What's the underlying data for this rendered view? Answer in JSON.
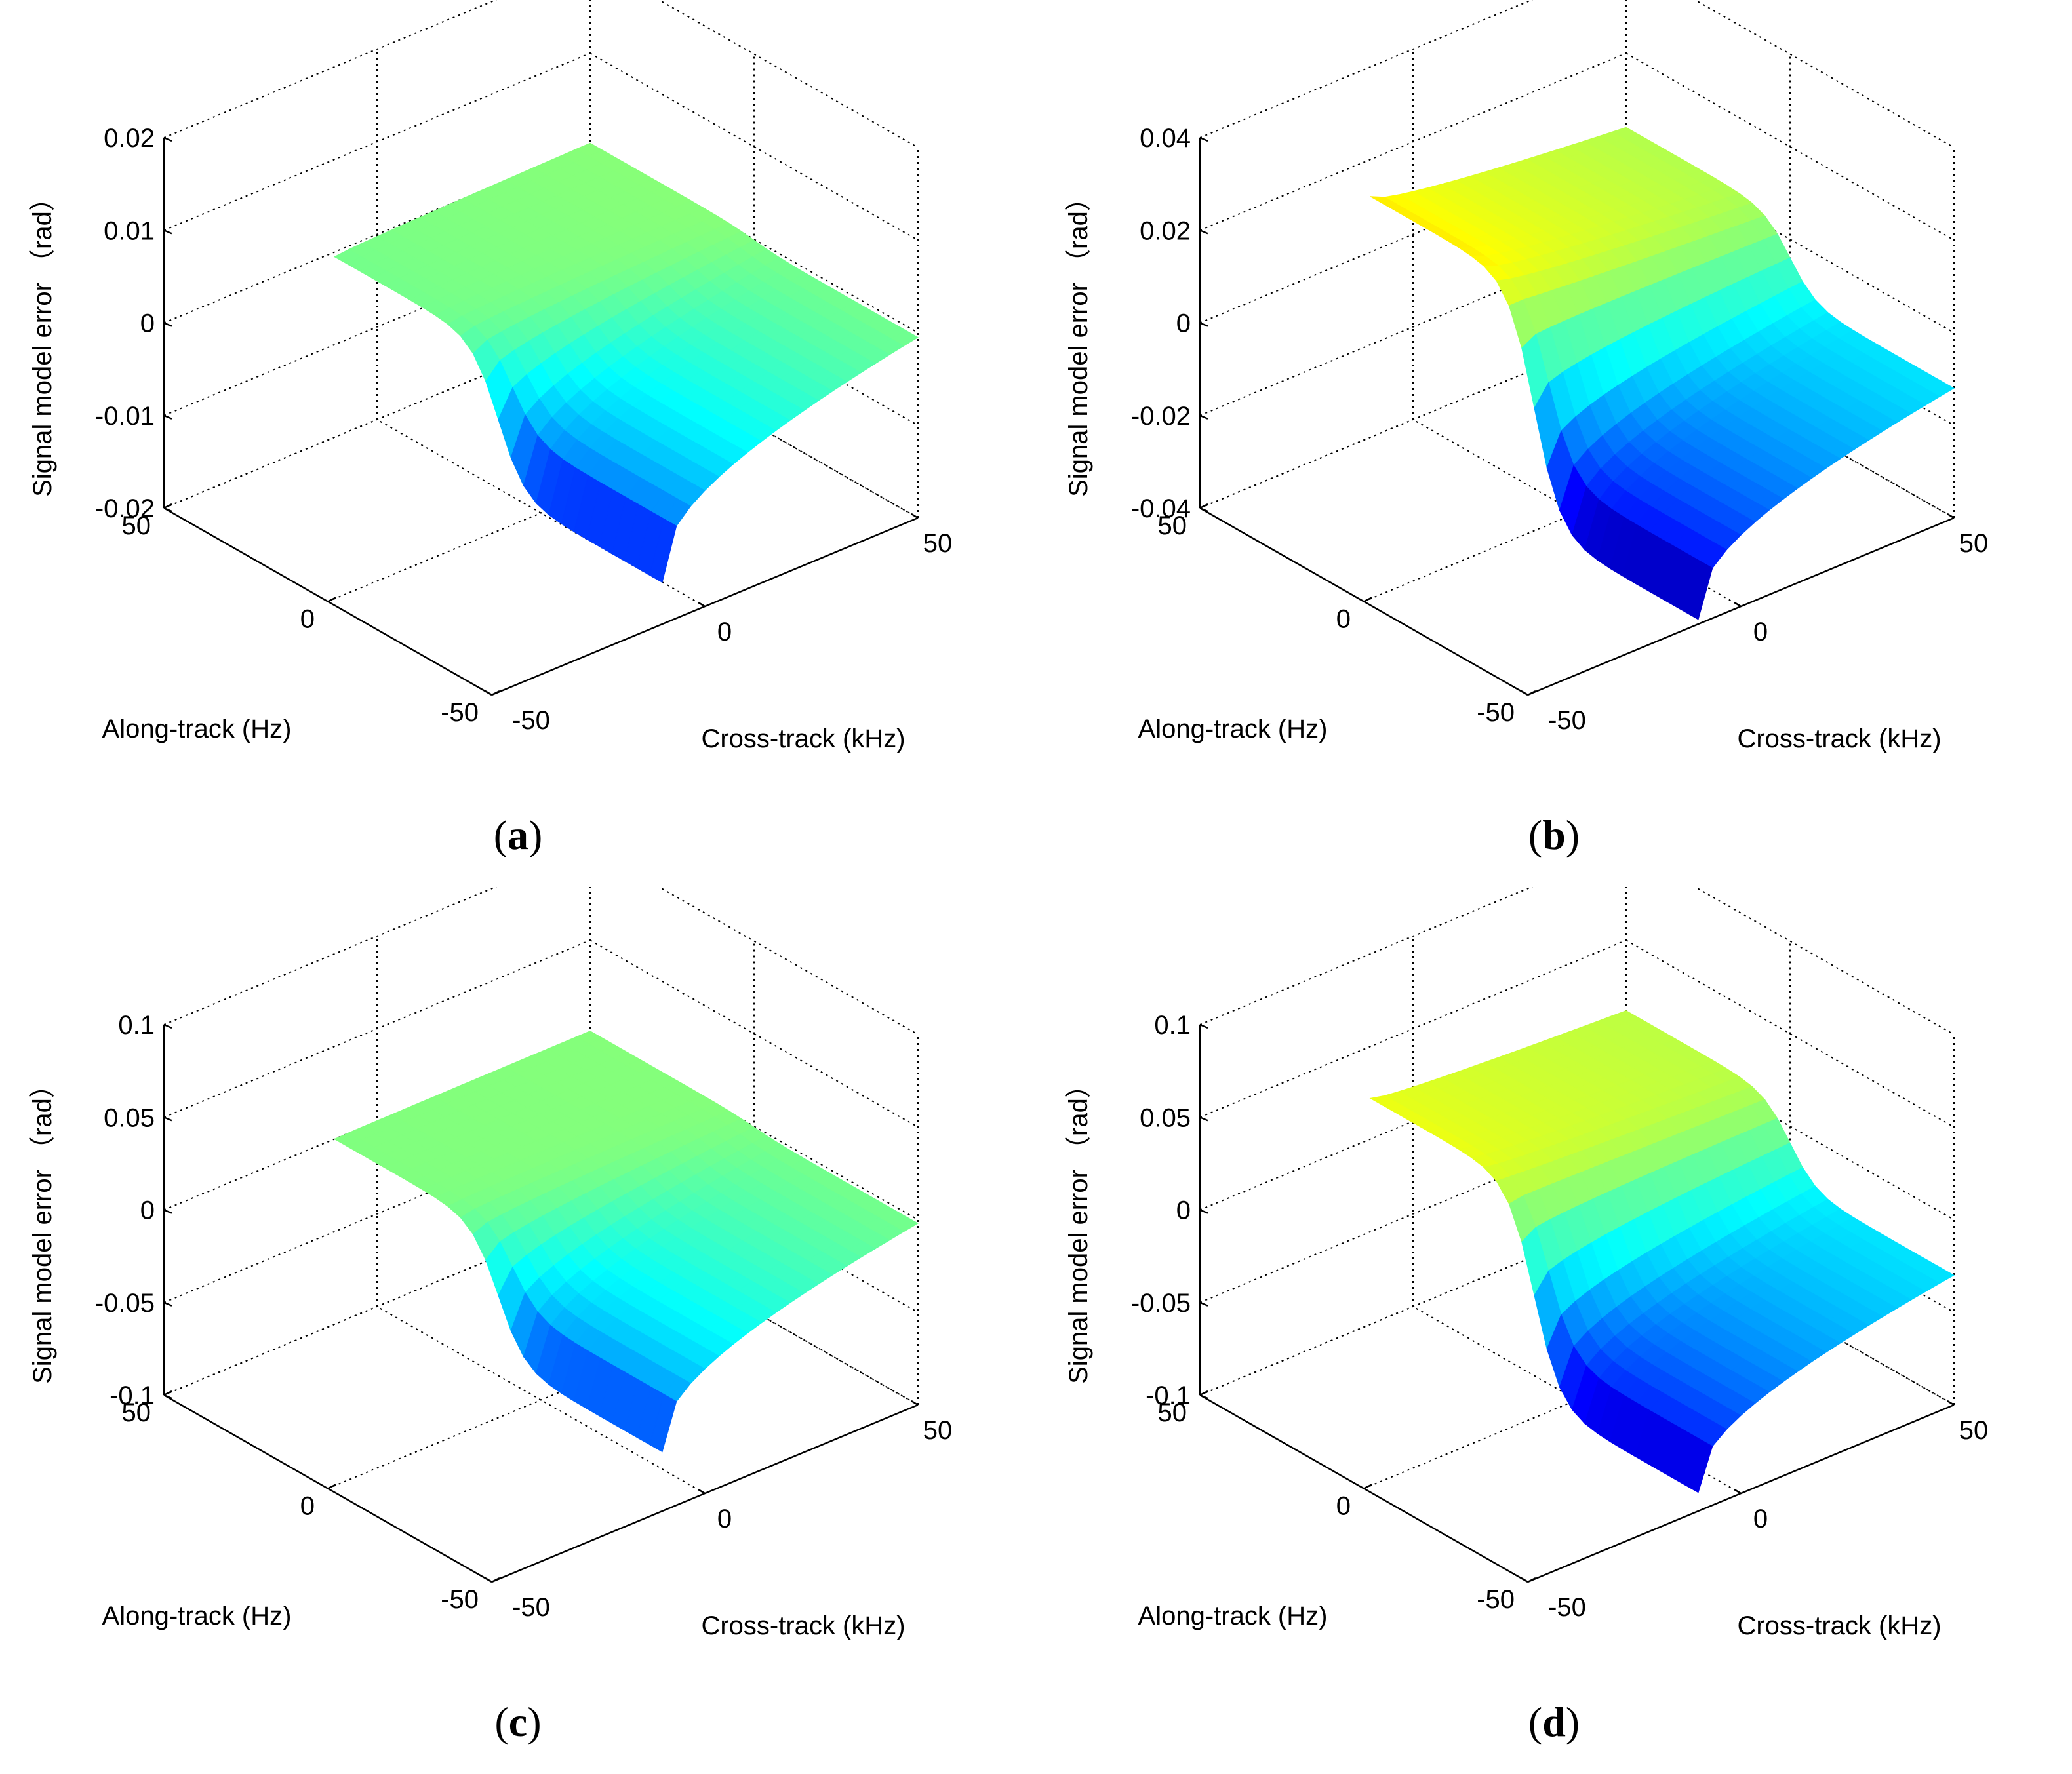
{
  "figure": {
    "panels": [
      {
        "id": "a",
        "caption_open": "(",
        "caption_letter": "a",
        "caption_close": ")"
      },
      {
        "id": "b",
        "caption_open": "(",
        "caption_letter": "b",
        "caption_close": ")"
      },
      {
        "id": "c",
        "caption_open": "(",
        "caption_letter": "c",
        "caption_close": ")"
      },
      {
        "id": "d",
        "caption_open": "(",
        "caption_letter": "d",
        "caption_close": ")"
      }
    ]
  },
  "chart_data": [
    {
      "type": "surface",
      "panel": "a",
      "xlabel": "Along-track (Hz)",
      "ylabel": "Cross-track (kHz)",
      "zlabel": "Signal model error （rad）",
      "xlim": [
        -50,
        50
      ],
      "ylim": [
        -50,
        50
      ],
      "zlim": [
        -0.02,
        0.02
      ],
      "x_ticks": [
        "-50",
        "0",
        "50"
      ],
      "y_ticks": [
        "-50",
        "0",
        "50"
      ],
      "z_ticks": [
        "-0.02",
        "-0.01",
        "0",
        "0.01",
        "0.02"
      ],
      "grid": true,
      "colormap": "jet",
      "surface": {
        "x_range": [
          -50,
          50
        ],
        "y_range": [
          -10,
          50
        ],
        "z_at_corners": {
          "x_neg_y_neg": -0.0155,
          "x_neg_y_pos": -0.0005,
          "x_pos_y_neg": -0.0005,
          "x_pos_y_pos": 0.0003
        },
        "fold_x": 0
      }
    },
    {
      "type": "surface",
      "panel": "b",
      "xlabel": "Along-track (Hz)",
      "ylabel": "Cross-track (kHz)",
      "zlabel": "Signal model error （rad）",
      "xlim": [
        -50,
        50
      ],
      "ylim": [
        -50,
        50
      ],
      "zlim": [
        -0.04,
        0.04
      ],
      "x_ticks": [
        "-50",
        "0",
        "50"
      ],
      "y_ticks": [
        "-50",
        "0",
        "50"
      ],
      "z_ticks": [
        "-0.04",
        "-0.02",
        "0",
        "0.02",
        "0.04"
      ],
      "grid": true,
      "colormap": "jet",
      "surface": {
        "x_range": [
          -50,
          50
        ],
        "y_range": [
          -10,
          50
        ],
        "z_at_corners": {
          "x_neg_y_neg": -0.039,
          "x_neg_y_pos": -0.012,
          "x_pos_y_neg": 0.012,
          "x_pos_y_pos": 0.004
        },
        "fold_x": 0
      }
    },
    {
      "type": "surface",
      "panel": "c",
      "xlabel": "Along-track (Hz)",
      "ylabel": "Cross-track (kHz)",
      "zlabel": "Signal model error （rad）",
      "xlim": [
        -50,
        50
      ],
      "ylim": [
        -50,
        50
      ],
      "zlim": [
        -0.1,
        0.1
      ],
      "x_ticks": [
        "-50",
        "0",
        "50"
      ],
      "y_ticks": [
        "-50",
        "0",
        "50"
      ],
      "z_ticks": [
        "-0.1",
        "-0.05",
        "0",
        "0.05",
        "0.1"
      ],
      "grid": true,
      "colormap": "jet",
      "surface": {
        "x_range": [
          -50,
          50
        ],
        "y_range": [
          -10,
          50
        ],
        "z_at_corners": {
          "x_neg_y_neg": -0.068,
          "x_neg_y_pos": -0.002,
          "x_pos_y_neg": 0.0,
          "x_pos_y_pos": 0.001
        },
        "fold_x": 0
      }
    },
    {
      "type": "surface",
      "panel": "d",
      "xlabel": "Along-track (Hz)",
      "ylabel": "Cross-track (kHz)",
      "zlabel": "Signal model error （rad）",
      "xlim": [
        -50,
        50
      ],
      "ylim": [
        -50,
        50
      ],
      "zlim": [
        -0.1,
        0.1
      ],
      "x_ticks": [
        "-50",
        "0",
        "50"
      ],
      "y_ticks": [
        "-50",
        "0",
        "50"
      ],
      "z_ticks": [
        "-0.1",
        "-0.05",
        "0",
        "0.05",
        "0.1"
      ],
      "grid": true,
      "colormap": "jet",
      "surface": {
        "x_range": [
          -50,
          50
        ],
        "y_range": [
          -10,
          50
        ],
        "z_at_corners": {
          "x_neg_y_neg": -0.09,
          "x_neg_y_pos": -0.03,
          "x_pos_y_neg": 0.022,
          "x_pos_y_pos": 0.012
        },
        "fold_x": 0
      }
    }
  ]
}
